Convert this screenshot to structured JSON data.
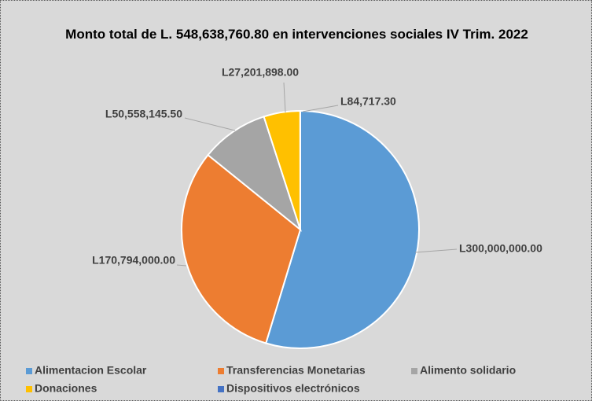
{
  "chart_data": {
    "type": "pie",
    "title": "Monto total de L. 548,638,760.80 en intervenciones sociales IV Trim. 2022",
    "categories": [
      "Alimentacion Escolar",
      "Transferencias Monetarias",
      "Alimento solidario",
      "Donaciones",
      "Dispositivos electrónicos"
    ],
    "values": [
      300000000,
      170794000,
      50558145.5,
      27201898,
      84717.3
    ],
    "value_labels": [
      "L300,000,000.00",
      "L170,794,000.00",
      "L50,558,145.50",
      "L27,201,898.00",
      "L84,717.30"
    ],
    "colors": [
      "#5b9bd5",
      "#ed7d31",
      "#a5a5a5",
      "#ffc000",
      "#4472c4"
    ],
    "legend": "bottom"
  }
}
